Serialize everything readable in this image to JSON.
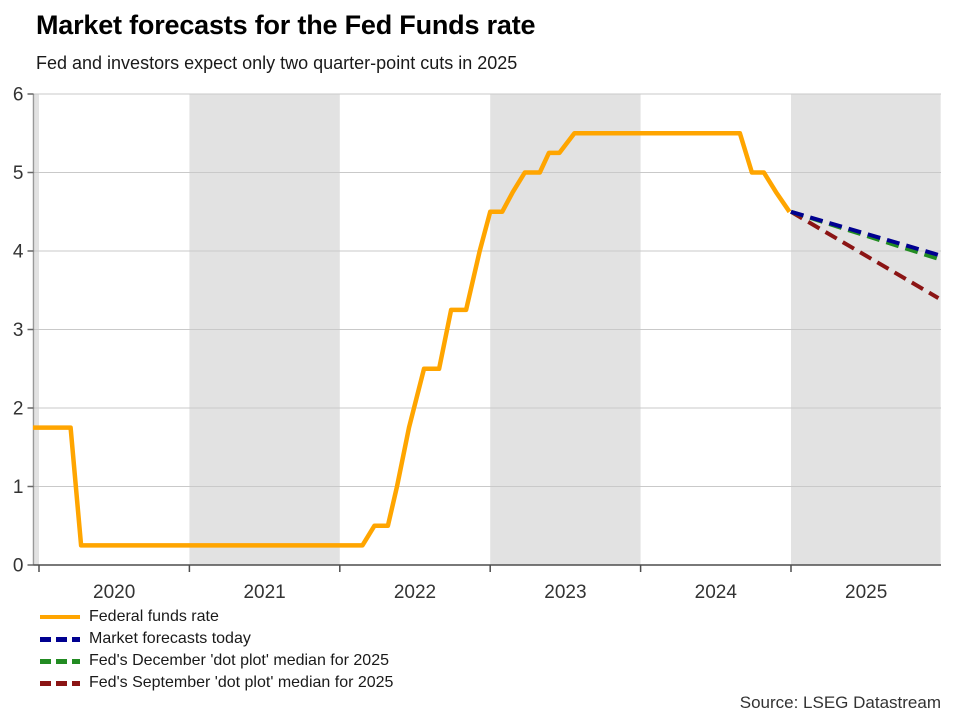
{
  "header": {
    "title": "Market forecasts for the Fed Funds rate",
    "subtitle": "Fed and investors expect only two quarter-point cuts in 2025"
  },
  "source": "Source: LSEG Datastream",
  "colors": {
    "fed_funds_orange": "#FFA500",
    "market_navy": "#000090",
    "dec_dot_green": "#228B22",
    "sep_dot_red": "#8B1414",
    "band_gray": "#E2E2E2",
    "gridline_gray": "#C9C9C9",
    "y_axis_gray": "#999999",
    "x_axis_dark": "#4D4D4D",
    "tick_label": "#333333"
  },
  "legend": {
    "items": [
      {
        "label": "Federal funds rate",
        "color": "#FFA500",
        "style": "solid"
      },
      {
        "label": "Market forecasts today",
        "color": "#000090",
        "style": "dashed"
      },
      {
        "label": "Fed's December 'dot plot' median for 2025",
        "color": "#228B22",
        "style": "dashed"
      },
      {
        "label": "Fed's September 'dot plot' median for 2025",
        "color": "#8B1414",
        "style": "dashed"
      }
    ]
  },
  "chart_data": {
    "type": "line",
    "title": "Market forecasts for the Fed Funds rate",
    "subtitle": "Fed and investors expect only two quarter-point cuts in 2025",
    "xlabel": "",
    "ylabel": "",
    "ylim": [
      0,
      6
    ],
    "xlim": [
      2019.96,
      2025.995
    ],
    "yticks": [
      0,
      1,
      2,
      3,
      4,
      5,
      6
    ],
    "xtick_years": [
      2020,
      2021,
      2022,
      2023,
      2024,
      2025
    ],
    "grid": "horizontal",
    "legend_position": "bottom-left",
    "shaded_bands": [
      [
        2019.97,
        2020
      ],
      [
        2021,
        2022
      ],
      [
        2023,
        2024
      ],
      [
        2025,
        2025.995
      ]
    ],
    "series": [
      {
        "name": "Fed's September 'dot plot' median for 2025",
        "color": "#8B1414",
        "dashed": true,
        "width": 4,
        "points": [
          [
            2025.0,
            4.5
          ],
          [
            2025.98,
            3.4
          ]
        ]
      },
      {
        "name": "Fed's December 'dot plot' median for 2025",
        "color": "#228B22",
        "dashed": true,
        "width": 4,
        "points": [
          [
            2025.0,
            4.5
          ],
          [
            2025.98,
            3.9
          ]
        ]
      },
      {
        "name": "Market forecasts today",
        "color": "#000090",
        "dashed": true,
        "width": 4,
        "points": [
          [
            2025.0,
            4.5
          ],
          [
            2025.98,
            3.95
          ]
        ]
      },
      {
        "name": "Federal funds rate",
        "color": "#FFA500",
        "dashed": false,
        "width": 4.5,
        "points": [
          [
            2019.96,
            1.75
          ],
          [
            2020.21,
            1.75
          ],
          [
            2020.28,
            0.25
          ],
          [
            2022.15,
            0.25
          ],
          [
            2022.23,
            0.5
          ],
          [
            2022.32,
            0.5
          ],
          [
            2022.38,
            1.0
          ],
          [
            2022.46,
            1.75
          ],
          [
            2022.56,
            2.5
          ],
          [
            2022.66,
            2.5
          ],
          [
            2022.74,
            3.25
          ],
          [
            2022.84,
            3.25
          ],
          [
            2022.93,
            4.0
          ],
          [
            2023.0,
            4.5
          ],
          [
            2023.08,
            4.5
          ],
          [
            2023.15,
            4.75
          ],
          [
            2023.23,
            5.0
          ],
          [
            2023.33,
            5.0
          ],
          [
            2023.39,
            5.25
          ],
          [
            2023.46,
            5.25
          ],
          [
            2023.56,
            5.5
          ],
          [
            2024.66,
            5.5
          ],
          [
            2024.74,
            5.0
          ],
          [
            2024.82,
            5.0
          ],
          [
            2024.9,
            4.75
          ],
          [
            2024.99,
            4.5
          ]
        ]
      }
    ]
  }
}
